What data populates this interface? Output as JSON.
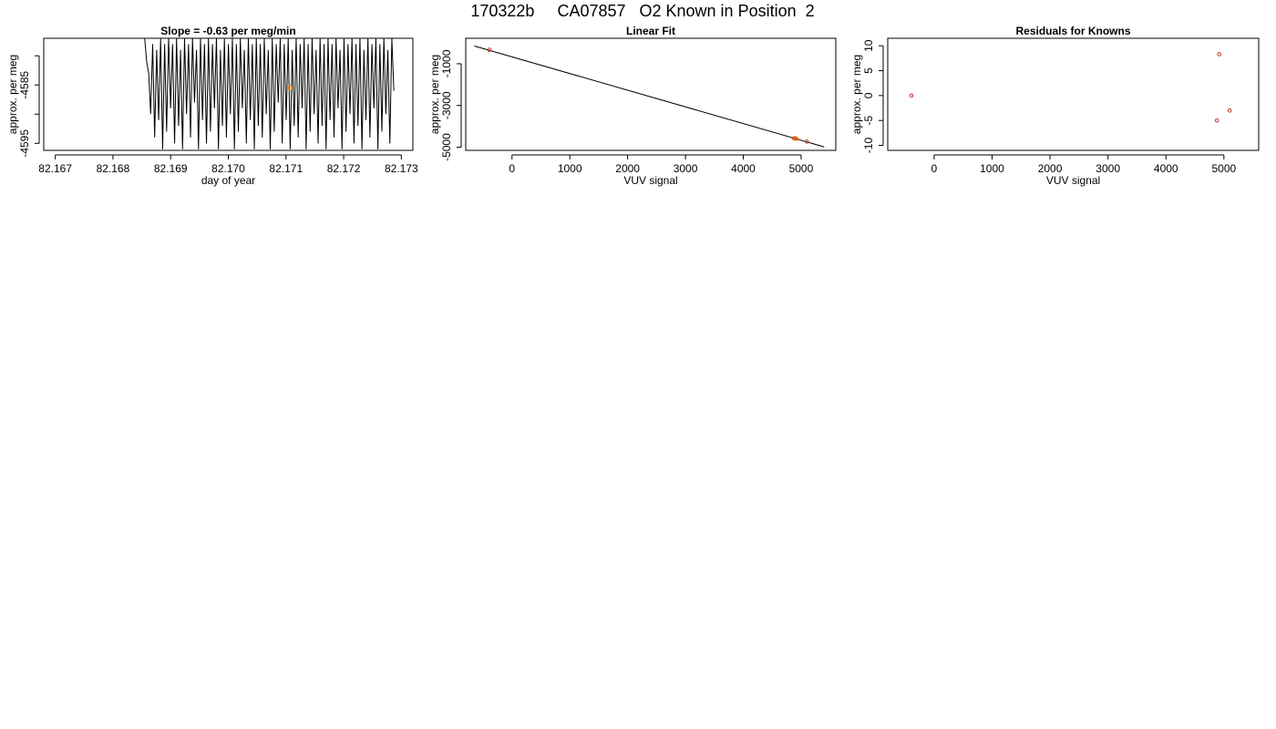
{
  "figure": {
    "title": "170322b     CA07857   O2 Known in Position  2"
  },
  "colors": {
    "trace": "#000000",
    "point_outline": "#c0392b",
    "highlight": "#ff8c00",
    "fit_line": "#000000",
    "frame": "#000000"
  },
  "chart_data": [
    {
      "type": "line",
      "title": "Slope =  -0.63  per meg/min",
      "xlabel": "day of year",
      "ylabel": "approx. per meg",
      "xlim": [
        82.1668,
        82.1732
      ],
      "ylim": [
        -4596.2,
        -4577
      ],
      "x_ticks": [
        82.167,
        82.168,
        82.169,
        82.17,
        82.171,
        82.172,
        82.173
      ],
      "x_tick_labels": [
        "82.167",
        "82.168",
        "82.169",
        "82.170",
        "82.171",
        "82.172",
        "82.173"
      ],
      "y_ticks": [
        -4580,
        -4585,
        -4590,
        -4595
      ],
      "y_tick_labels": [
        "",
        "-4585",
        "",
        "-4595"
      ],
      "series": [
        {
          "x_start": 82.16855,
          "x_end": 82.17287,
          "oscillation_cycles": 62,
          "values": [
            -4577,
            -4581,
            -4583,
            -4590,
            -4578,
            -4594,
            -4579,
            -4591,
            -4577,
            -4596,
            -4578,
            -4593,
            -4577,
            -4589,
            -4578,
            -4595,
            -4577,
            -4592,
            -4579,
            -4596,
            -4577,
            -4590,
            -4578,
            -4594,
            -4577,
            -4588,
            -4579,
            -4596,
            -4577,
            -4591,
            -4578,
            -4595,
            -4577,
            -4593,
            -4578,
            -4589,
            -4577,
            -4596,
            -4579,
            -4592,
            -4577,
            -4594,
            -4578,
            -4590,
            -4577,
            -4596,
            -4578,
            -4593,
            -4577,
            -4589,
            -4579,
            -4595,
            -4577,
            -4591,
            -4578,
            -4596,
            -4577,
            -4592,
            -4578,
            -4594,
            -4577,
            -4590,
            -4579,
            -4596,
            -4577,
            -4593,
            -4578,
            -4588,
            -4577,
            -4595,
            -4578,
            -4591,
            -4577,
            -4596,
            -4579,
            -4592,
            -4577,
            -4594,
            -4578,
            -4589,
            -4577,
            -4596,
            -4578,
            -4593,
            -4577,
            -4590,
            -4579,
            -4595,
            -4577,
            -4592,
            -4578,
            -4596,
            -4577,
            -4591,
            -4578,
            -4594,
            -4577,
            -4589,
            -4579,
            -4596,
            -4577,
            -4593,
            -4578,
            -4590,
            -4577,
            -4595,
            -4578,
            -4592,
            -4577,
            -4596,
            -4579,
            -4591,
            -4577,
            -4594,
            -4578,
            -4589,
            -4577,
            -4596,
            -4578,
            -4593,
            -4577,
            -4590,
            -4579,
            -4595,
            -4577,
            -4586
          ]
        }
      ],
      "highlight_point": {
        "x": 82.17107,
        "y": -4585.5
      }
    },
    {
      "type": "scatter",
      "title": "Linear Fit",
      "xlabel": "VUV signal",
      "ylabel": "approx. per meg",
      "xlim": [
        -800,
        5600
      ],
      "ylim": [
        -5150,
        220
      ],
      "x_ticks": [
        0,
        1000,
        2000,
        3000,
        4000,
        5000
      ],
      "x_tick_labels": [
        "0",
        "1000",
        "2000",
        "3000",
        "4000",
        "5000"
      ],
      "y_ticks": [
        -1000,
        -3000,
        -5000
      ],
      "y_tick_labels": [
        "-1000",
        "-3000",
        "-5000"
      ],
      "fit_line": {
        "x": [
          -650,
          5400
        ],
        "y": [
          -150,
          -4985
        ]
      },
      "points": [
        {
          "x": -390,
          "y": -330
        },
        {
          "x": 4880,
          "y": -4575
        },
        {
          "x": 4900,
          "y": -4568
        },
        {
          "x": 4920,
          "y": -4595
        },
        {
          "x": 5100,
          "y": -4730
        }
      ],
      "highlight_point": {
        "x": 4910,
        "y": -4585
      }
    },
    {
      "type": "scatter",
      "title": "Residuals for Knowns",
      "xlabel": "VUV signal",
      "ylabel": "approx. per meg",
      "xlim": [
        -800,
        5600
      ],
      "ylim": [
        -11,
        11.5
      ],
      "x_ticks": [
        0,
        1000,
        2000,
        3000,
        4000,
        5000
      ],
      "x_tick_labels": [
        "0",
        "1000",
        "2000",
        "3000",
        "4000",
        "5000"
      ],
      "y_ticks": [
        -10,
        -5,
        0,
        5,
        10
      ],
      "y_tick_labels": [
        "-10",
        "-5",
        "0",
        "5",
        "10"
      ],
      "points": [
        {
          "x": -390,
          "y": 0
        },
        {
          "x": 4880,
          "y": -5
        },
        {
          "x": 4920,
          "y": 8.3
        },
        {
          "x": 5100,
          "y": -3
        }
      ]
    }
  ]
}
